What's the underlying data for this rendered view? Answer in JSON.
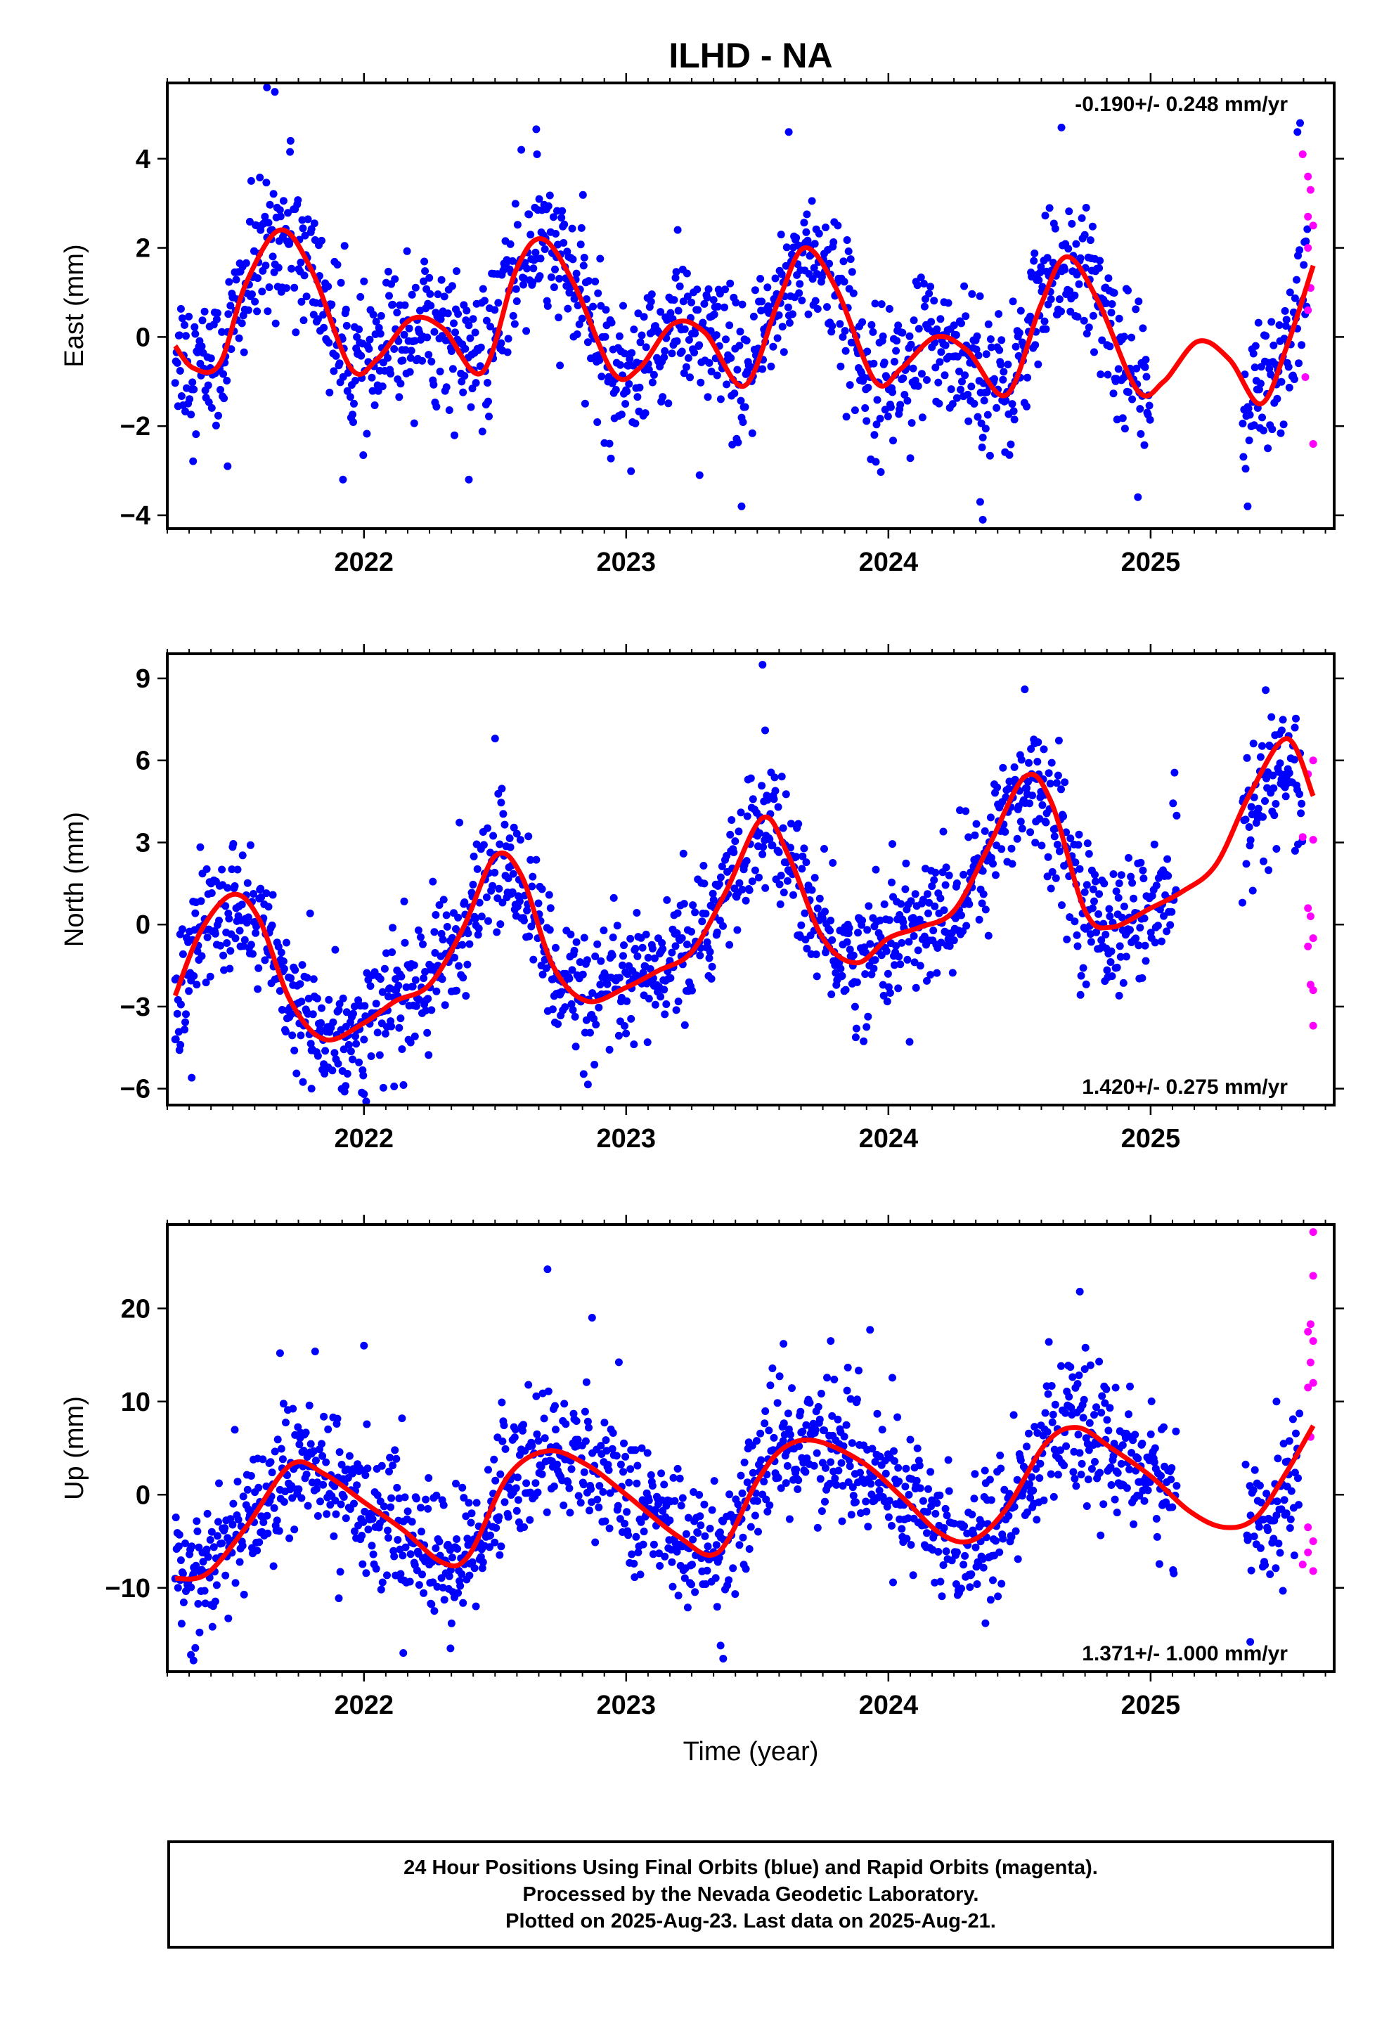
{
  "title": "ILHD - NA",
  "colors": {
    "final": "#0000ff",
    "rapid": "#ff00ff",
    "model": "#ff0000"
  },
  "chart_data": [
    {
      "type": "scatter",
      "panel": "east",
      "ylabel": "East (mm)",
      "xlabel": "",
      "rate_label": "-0.190+/- 0.248 mm/yr",
      "rate_position": "top-right",
      "xlim": [
        2021.25,
        2025.7
      ],
      "ylim": [
        -4.3,
        5.7
      ],
      "xticks": [
        2022,
        2023,
        2024,
        2025
      ],
      "xtick_labels": [
        "2022",
        "2023",
        "2024",
        "2025"
      ],
      "yticks": [
        -4,
        -2,
        0,
        2,
        4
      ],
      "ytick_labels": [
        "−4",
        "−2",
        "0",
        "2",
        "4"
      ],
      "model_curve": {
        "name": "model",
        "x": [
          2021.28,
          2021.35,
          2021.45,
          2021.55,
          2021.68,
          2021.8,
          2021.95,
          2022.05,
          2022.18,
          2022.3,
          2022.45,
          2022.58,
          2022.68,
          2022.8,
          2022.95,
          2023.05,
          2023.18,
          2023.3,
          2023.45,
          2023.58,
          2023.68,
          2023.8,
          2023.95,
          2024.05,
          2024.18,
          2024.3,
          2024.45,
          2024.58,
          2024.68,
          2024.8,
          2024.95,
          2025.05,
          2025.18,
          2025.3,
          2025.42,
          2025.52,
          2025.62
        ],
        "y": [
          -0.2,
          -0.7,
          -0.6,
          1.2,
          2.4,
          1.5,
          -0.7,
          -0.5,
          0.4,
          0.2,
          -0.8,
          1.5,
          2.2,
          1.2,
          -0.8,
          -0.7,
          0.3,
          0.1,
          -1.1,
          0.8,
          2.0,
          1.1,
          -1.0,
          -0.7,
          0.0,
          -0.3,
          -1.3,
          0.7,
          1.8,
          0.8,
          -1.2,
          -1.0,
          -0.1,
          -0.5,
          -1.5,
          -0.2,
          1.6
        ]
      },
      "final_trend": [
        [
          2021.28,
          -0.2,
          0.8
        ],
        [
          2021.35,
          -0.7,
          0.8
        ],
        [
          2021.45,
          -0.6,
          0.8
        ],
        [
          2021.55,
          1.2,
          0.8
        ],
        [
          2021.68,
          2.4,
          0.8
        ],
        [
          2021.8,
          1.5,
          0.8
        ],
        [
          2021.95,
          -0.7,
          0.8
        ],
        [
          2022.05,
          -0.5,
          0.8
        ],
        [
          2022.18,
          0.4,
          0.8
        ],
        [
          2022.3,
          0.2,
          0.8
        ],
        [
          2022.45,
          -0.8,
          0.8
        ],
        [
          2022.58,
          1.5,
          0.8
        ],
        [
          2022.68,
          2.2,
          0.8
        ],
        [
          2022.8,
          1.2,
          0.8
        ],
        [
          2022.95,
          -0.8,
          0.8
        ],
        [
          2023.05,
          -0.7,
          0.8
        ],
        [
          2023.18,
          0.3,
          0.8
        ],
        [
          2023.3,
          0.1,
          0.8
        ],
        [
          2023.45,
          -1.1,
          0.8
        ],
        [
          2023.58,
          0.8,
          0.8
        ],
        [
          2023.68,
          2.0,
          0.8
        ],
        [
          2023.8,
          1.1,
          0.8
        ],
        [
          2023.95,
          -1.0,
          0.8
        ],
        [
          2024.05,
          -0.7,
          0.8
        ],
        [
          2024.18,
          0.0,
          0.8
        ],
        [
          2024.3,
          -0.3,
          0.8
        ],
        [
          2024.45,
          -1.3,
          0.8
        ],
        [
          2024.58,
          0.7,
          0.8
        ],
        [
          2024.68,
          1.8,
          0.8
        ],
        [
          2024.8,
          0.8,
          0.8
        ],
        [
          2024.95,
          -1.2,
          0.8
        ],
        [
          2025.0,
          -1.0,
          0.8
        ],
        [
          2025.35,
          -1.3,
          0.8
        ],
        [
          2025.42,
          -1.5,
          0.8
        ],
        [
          2025.52,
          -0.2,
          0.8
        ],
        [
          2025.6,
          1.4,
          0.8
        ]
      ],
      "final_gaps": [
        [
          2025.0,
          2025.35
        ]
      ],
      "final_outliers": [
        [
          2021.63,
          5.6
        ],
        [
          2021.66,
          5.5
        ],
        [
          2021.72,
          4.4
        ],
        [
          2022.6,
          4.2
        ],
        [
          2022.66,
          4.1
        ],
        [
          2023.62,
          4.6
        ],
        [
          2024.66,
          4.7
        ],
        [
          2025.57,
          4.8
        ],
        [
          2025.56,
          4.6
        ],
        [
          2023.28,
          -3.1
        ],
        [
          2023.44,
          -3.8
        ],
        [
          2024.36,
          -4.1
        ],
        [
          2024.35,
          -3.7
        ],
        [
          2025.37,
          -3.8
        ],
        [
          2021.48,
          -2.9
        ],
        [
          2021.92,
          -3.2
        ],
        [
          2022.4,
          -3.2
        ]
      ],
      "rapid_points": [
        [
          2025.58,
          4.1
        ],
        [
          2025.6,
          3.6
        ],
        [
          2025.61,
          3.3
        ],
        [
          2025.6,
          2.7
        ],
        [
          2025.62,
          2.5
        ],
        [
          2025.6,
          2.0
        ],
        [
          2025.61,
          1.1
        ],
        [
          2025.6,
          0.6
        ],
        [
          2025.59,
          -0.9
        ],
        [
          2025.62,
          -2.4
        ]
      ]
    },
    {
      "type": "scatter",
      "panel": "north",
      "ylabel": "North (mm)",
      "xlabel": "",
      "rate_label": "1.420+/- 0.275 mm/yr",
      "rate_position": "bottom-right",
      "xlim": [
        2021.25,
        2025.7
      ],
      "ylim": [
        -6.6,
        9.9
      ],
      "xticks": [
        2022,
        2023,
        2024,
        2025
      ],
      "xtick_labels": [
        "2022",
        "2023",
        "2024",
        "2025"
      ],
      "yticks": [
        -6,
        -3,
        0,
        3,
        6,
        9
      ],
      "ytick_labels": [
        "−6",
        "−3",
        "0",
        "3",
        "6",
        "9"
      ],
      "model_curve": {
        "name": "model",
        "x": [
          2021.28,
          2021.38,
          2021.5,
          2021.6,
          2021.72,
          2021.85,
          2022.0,
          2022.12,
          2022.25,
          2022.38,
          2022.5,
          2022.6,
          2022.72,
          2022.85,
          2023.0,
          2023.12,
          2023.25,
          2023.38,
          2023.52,
          2023.62,
          2023.75,
          2023.88,
          2024.0,
          2024.12,
          2024.25,
          2024.38,
          2024.52,
          2024.62,
          2024.75,
          2024.85,
          2025.0,
          2025.12,
          2025.25,
          2025.38,
          2025.52,
          2025.62
        ],
        "y": [
          -2.6,
          -0.2,
          1.1,
          0.2,
          -2.8,
          -4.2,
          -3.6,
          -2.8,
          -2.2,
          -0.1,
          2.5,
          1.8,
          -1.5,
          -2.8,
          -2.3,
          -1.7,
          -1.0,
          1.2,
          3.9,
          2.5,
          -0.5,
          -1.4,
          -0.5,
          -0.1,
          0.5,
          2.8,
          5.4,
          4.5,
          0.5,
          -0.1,
          0.6,
          1.2,
          2.2,
          4.8,
          6.8,
          4.7
        ]
      },
      "final_trend": [
        [
          2021.28,
          -2.6,
          1.2
        ],
        [
          2021.38,
          -0.2,
          1.2
        ],
        [
          2021.5,
          1.1,
          1.2
        ],
        [
          2021.6,
          0.2,
          1.2
        ],
        [
          2021.72,
          -2.8,
          1.2
        ],
        [
          2021.85,
          -4.2,
          1.2
        ],
        [
          2022.0,
          -3.6,
          1.2
        ],
        [
          2022.12,
          -2.8,
          1.2
        ],
        [
          2022.25,
          -2.2,
          1.2
        ],
        [
          2022.38,
          -0.1,
          1.2
        ],
        [
          2022.5,
          2.5,
          1.2
        ],
        [
          2022.6,
          1.8,
          1.2
        ],
        [
          2022.72,
          -1.5,
          1.2
        ],
        [
          2022.85,
          -2.8,
          1.2
        ],
        [
          2023.0,
          -2.3,
          1.2
        ],
        [
          2023.12,
          -1.7,
          1.2
        ],
        [
          2023.25,
          -1.0,
          1.2
        ],
        [
          2023.38,
          1.2,
          1.2
        ],
        [
          2023.52,
          3.9,
          1.2
        ],
        [
          2023.62,
          2.5,
          1.2
        ],
        [
          2023.75,
          -0.5,
          1.2
        ],
        [
          2023.88,
          -1.4,
          1.2
        ],
        [
          2024.0,
          -0.5,
          1.2
        ],
        [
          2024.12,
          -0.1,
          1.2
        ],
        [
          2024.25,
          0.5,
          1.2
        ],
        [
          2024.38,
          2.8,
          1.2
        ],
        [
          2024.52,
          5.4,
          1.2
        ],
        [
          2024.62,
          4.5,
          1.2
        ],
        [
          2024.75,
          0.5,
          1.2
        ],
        [
          2024.85,
          -0.1,
          1.2
        ],
        [
          2025.0,
          0.6,
          1.2
        ],
        [
          2025.1,
          1.0,
          1.2
        ],
        [
          2025.35,
          4.2,
          1.2
        ],
        [
          2025.45,
          5.2,
          1.2
        ],
        [
          2025.52,
          5.4,
          1.2
        ],
        [
          2025.58,
          5.0,
          1.2
        ]
      ],
      "final_gaps": [
        [
          2025.1,
          2025.35
        ]
      ],
      "final_outliers": [
        [
          2023.52,
          9.5
        ],
        [
          2024.52,
          8.6
        ],
        [
          2022.5,
          6.8
        ],
        [
          2023.53,
          7.1
        ],
        [
          2022.0,
          -6.2
        ],
        [
          2021.93,
          -5.9
        ],
        [
          2021.28,
          -4.2
        ],
        [
          2021.3,
          -4.4
        ],
        [
          2021.8,
          -6.0
        ],
        [
          2024.88,
          -2.6
        ],
        [
          2025.35,
          0.8
        ],
        [
          2025.55,
          7.2
        ],
        [
          2025.5,
          7.1
        ]
      ],
      "rapid_points": [
        [
          2025.62,
          6.0
        ],
        [
          2025.6,
          5.5
        ],
        [
          2025.58,
          3.2
        ],
        [
          2025.62,
          3.1
        ],
        [
          2025.6,
          0.6
        ],
        [
          2025.61,
          0.3
        ],
        [
          2025.62,
          -0.5
        ],
        [
          2025.6,
          -0.8
        ],
        [
          2025.61,
          -2.2
        ],
        [
          2025.62,
          -2.4
        ],
        [
          2025.62,
          -3.7
        ]
      ]
    },
    {
      "type": "scatter",
      "panel": "up",
      "ylabel": "Up (mm)",
      "xlabel": "Time (year)",
      "rate_label": "1.371+/- 1.000 mm/yr",
      "rate_position": "bottom-right",
      "xlim": [
        2021.25,
        2025.7
      ],
      "ylim": [
        -19,
        29
      ],
      "xticks": [
        2022,
        2023,
        2024,
        2025
      ],
      "xtick_labels": [
        "2022",
        "2023",
        "2024",
        "2025"
      ],
      "yticks": [
        -10,
        0,
        10,
        20
      ],
      "ytick_labels": [
        "−10",
        "0",
        "10",
        "20"
      ],
      "model_curve": {
        "name": "model",
        "x": [
          2021.28,
          2021.4,
          2021.55,
          2021.72,
          2021.85,
          2022.0,
          2022.15,
          2022.3,
          2022.4,
          2022.55,
          2022.7,
          2022.85,
          2023.0,
          2023.2,
          2023.35,
          2023.5,
          2023.6,
          2023.72,
          2023.9,
          2024.05,
          2024.2,
          2024.32,
          2024.45,
          2024.6,
          2024.72,
          2024.85,
          2025.0,
          2025.15,
          2025.28,
          2025.4,
          2025.52,
          2025.62
        ],
        "y": [
          -9.0,
          -8.5,
          -3.5,
          3.2,
          2.2,
          -0.8,
          -3.8,
          -7.3,
          -6.5,
          2.0,
          4.7,
          3.2,
          0.0,
          -4.5,
          -6.2,
          1.5,
          5.0,
          5.8,
          3.5,
          -0.2,
          -4.2,
          -4.9,
          -1.5,
          5.5,
          7.2,
          5.0,
          2.0,
          -1.8,
          -3.5,
          -2.5,
          2.5,
          7.4
        ]
      },
      "final_trend": [
        [
          2021.28,
          -9.0,
          3.6
        ],
        [
          2021.4,
          -8.5,
          3.6
        ],
        [
          2021.55,
          -3.5,
          3.6
        ],
        [
          2021.72,
          3.2,
          3.6
        ],
        [
          2021.85,
          2.2,
          3.6
        ],
        [
          2022.0,
          -0.8,
          3.6
        ],
        [
          2022.15,
          -3.8,
          3.6
        ],
        [
          2022.3,
          -7.3,
          3.6
        ],
        [
          2022.4,
          -6.5,
          3.6
        ],
        [
          2022.55,
          2.0,
          3.6
        ],
        [
          2022.7,
          4.7,
          3.6
        ],
        [
          2022.85,
          3.2,
          3.6
        ],
        [
          2023.0,
          0.0,
          3.6
        ],
        [
          2023.2,
          -4.5,
          3.6
        ],
        [
          2023.35,
          -6.2,
          3.6
        ],
        [
          2023.5,
          1.5,
          3.6
        ],
        [
          2023.6,
          5.0,
          3.6
        ],
        [
          2023.72,
          5.8,
          3.6
        ],
        [
          2023.9,
          3.5,
          3.6
        ],
        [
          2024.05,
          -0.2,
          3.6
        ],
        [
          2024.2,
          -4.2,
          3.6
        ],
        [
          2024.32,
          -4.9,
          3.6
        ],
        [
          2024.45,
          -1.5,
          3.6
        ],
        [
          2024.6,
          5.5,
          3.6
        ],
        [
          2024.72,
          7.2,
          3.6
        ],
        [
          2024.85,
          5.0,
          3.6
        ],
        [
          2025.0,
          2.0,
          3.6
        ],
        [
          2025.1,
          0.0,
          3.6
        ],
        [
          2025.36,
          -3.0,
          3.6
        ],
        [
          2025.45,
          -2.2,
          3.6
        ],
        [
          2025.52,
          0.5,
          3.6
        ],
        [
          2025.57,
          1.5,
          3.6
        ]
      ],
      "final_gaps": [
        [
          2025.1,
          2025.36
        ]
      ],
      "final_outliers": [
        [
          2022.7,
          24.2
        ],
        [
          2022.87,
          19.0
        ],
        [
          2024.73,
          21.8
        ],
        [
          2021.35,
          -17.8
        ],
        [
          2021.34,
          -17.2
        ],
        [
          2022.15,
          -17.0
        ],
        [
          2022.33,
          -16.5
        ],
        [
          2023.37,
          -17.6
        ],
        [
          2023.36,
          -16.2
        ],
        [
          2025.38,
          -15.8
        ],
        [
          2024.37,
          -13.8
        ],
        [
          2021.68,
          15.2
        ],
        [
          2022.0,
          16.0
        ],
        [
          2023.6,
          16.2
        ],
        [
          2023.78,
          16.5
        ],
        [
          2023.93,
          17.7
        ],
        [
          2025.48,
          10.0
        ]
      ],
      "rapid_points": [
        [
          2025.62,
          28.2
        ],
        [
          2025.62,
          23.5
        ],
        [
          2025.61,
          18.3
        ],
        [
          2025.6,
          17.5
        ],
        [
          2025.62,
          16.5
        ],
        [
          2025.61,
          14.2
        ],
        [
          2025.6,
          11.5
        ],
        [
          2025.62,
          12.0
        ],
        [
          2025.61,
          6.2
        ],
        [
          2025.6,
          -3.5
        ],
        [
          2025.62,
          -5.0
        ],
        [
          2025.6,
          -6.2
        ],
        [
          2025.58,
          -7.5
        ],
        [
          2025.62,
          -8.2
        ]
      ]
    }
  ],
  "footer": {
    "line1": "24 Hour Positions Using Final Orbits (blue) and Rapid Orbits (magenta).",
    "line2": "Processed by the Nevada Geodetic Laboratory.",
    "line3": "Plotted on 2025-Aug-23. Last data on 2025-Aug-21."
  }
}
